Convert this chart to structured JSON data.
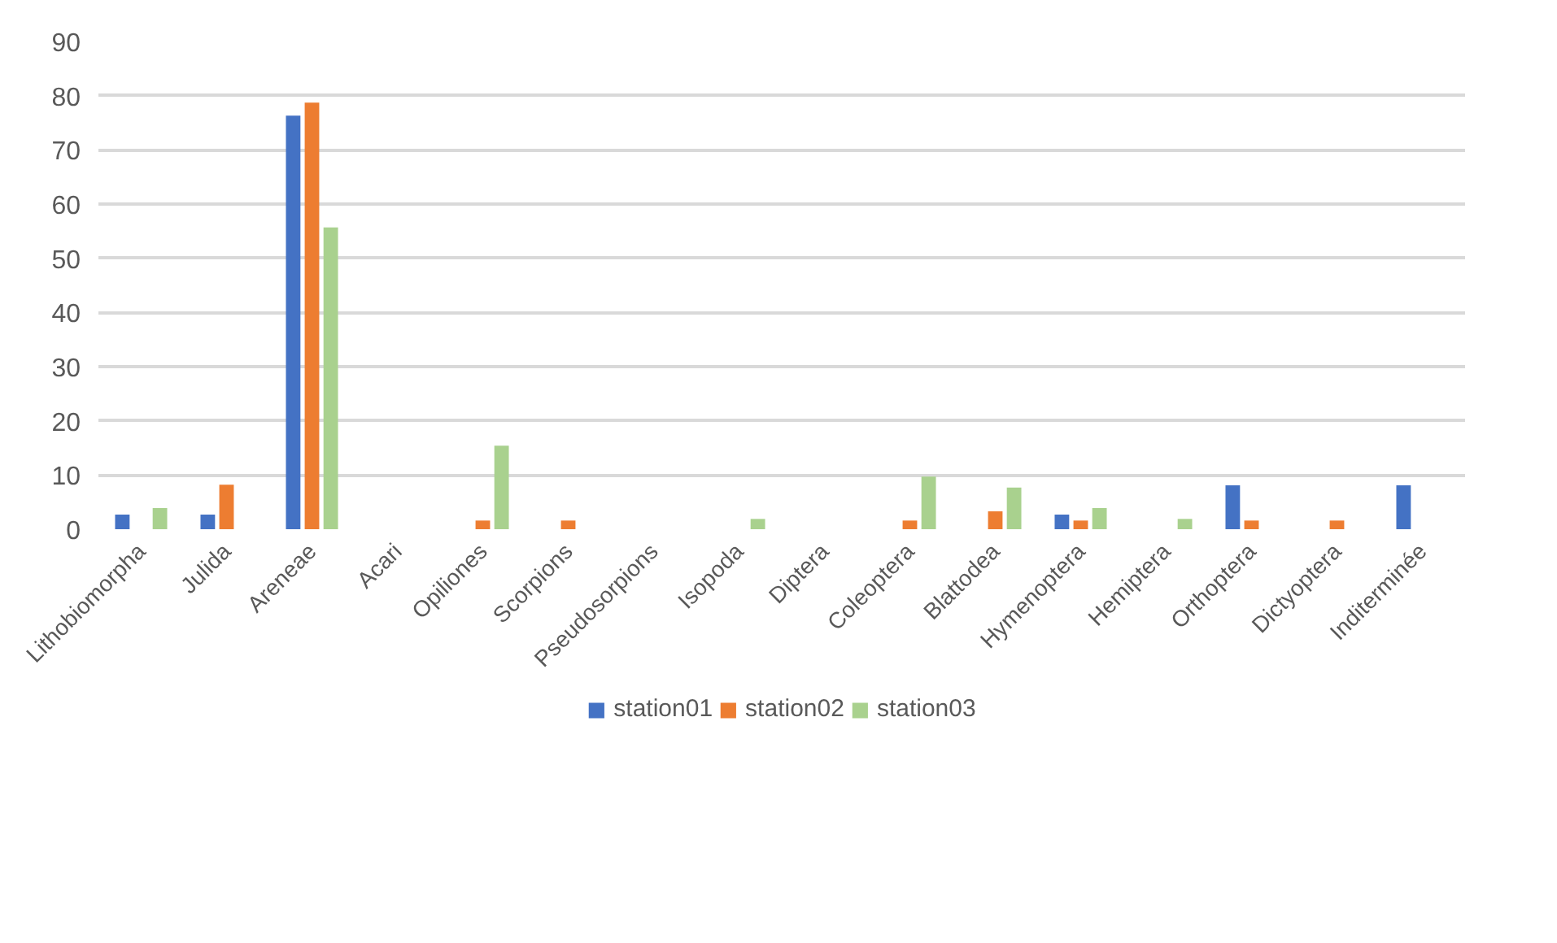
{
  "chart_data": {
    "type": "bar",
    "categories": [
      "Lithobiomorpha",
      "Julida",
      "Areneae",
      "Acari",
      "Opiliones",
      "Scorpions",
      "Pseudosorpions",
      "Isopoda",
      "Diptera",
      "Coleoptera",
      "Blattodea",
      "Hymenoptera",
      "Hemiptera",
      "Orthoptera",
      "Dictyoptera",
      "Inditerminée"
    ],
    "series": [
      {
        "name": "station01",
        "color": "#4472c4",
        "values": [
          2.7,
          2.7,
          76.3,
          0,
          0,
          0,
          0,
          0,
          0,
          0,
          0,
          2.7,
          0,
          8.1,
          0,
          8.1
        ]
      },
      {
        "name": "station02",
        "color": "#ed7d31",
        "values": [
          0,
          8.2,
          78.7,
          0,
          1.6,
          1.6,
          0,
          0,
          0,
          1.6,
          3.3,
          1.6,
          0,
          1.6,
          1.6,
          0
        ]
      },
      {
        "name": "station03",
        "color": "#a9d18e",
        "values": [
          3.9,
          0,
          55.7,
          0,
          15.4,
          0,
          0,
          1.9,
          0,
          9.7,
          7.7,
          3.9,
          1.9,
          0,
          0,
          0
        ]
      }
    ],
    "ylim": [
      0,
      90
    ],
    "yticks": [
      0,
      10,
      20,
      30,
      40,
      50,
      60,
      70,
      80,
      90
    ],
    "grid": "y",
    "legend": "bottom"
  }
}
